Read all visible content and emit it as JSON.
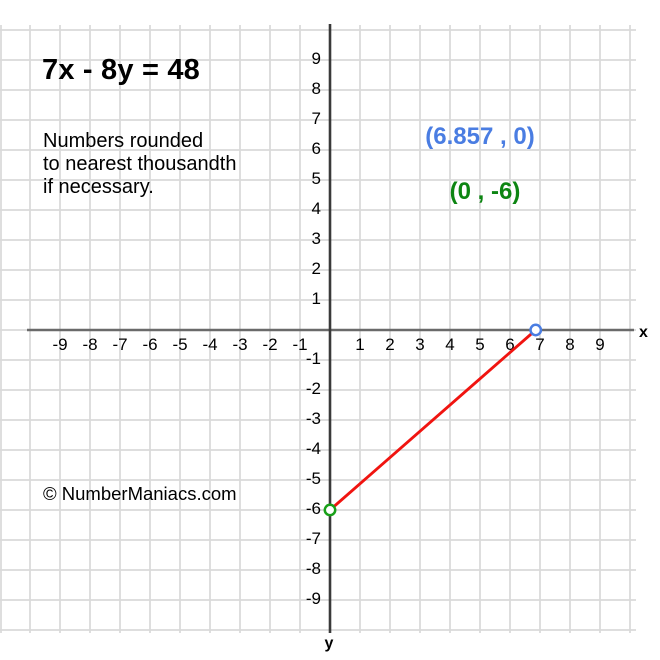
{
  "title": "7x - 8y = 48",
  "note_lines": [
    "Numbers rounded",
    "to nearest thousandth",
    "if necessary."
  ],
  "labels": {
    "x_intercept": {
      "text": "(6.857 , 0)",
      "color": "#4a7de2"
    },
    "y_intercept": {
      "text": "(0 , -6)",
      "color": "#0d8512"
    }
  },
  "watermark": "© NumberManiacs.com",
  "colors": {
    "grid": "#d9d9d9",
    "x_axis": "#6a6a6a",
    "y_axis": "#3a3a3a",
    "tick_text": "#000000",
    "line": "#f01410",
    "x_intercept_point": "#4a7de2",
    "y_intercept_point": "#19a019",
    "point_fill": "#ffffff"
  },
  "chart_data": {
    "type": "line",
    "title": "7x - 8y = 48",
    "equation": "7x - 8y = 48",
    "xlabel": "x",
    "ylabel": "y",
    "xlim": [
      -10.1,
      10.2
    ],
    "ylim": [
      -10.2,
      10.2
    ],
    "grid": true,
    "grid_step": 1,
    "x_ticks": [
      -9,
      -8,
      -7,
      -6,
      -5,
      -4,
      -3,
      -2,
      -1,
      1,
      2,
      3,
      4,
      5,
      6,
      7,
      8,
      9
    ],
    "y_ticks": [
      9,
      8,
      7,
      6,
      5,
      4,
      3,
      2,
      1,
      -1,
      -2,
      -3,
      -4,
      -5,
      -6,
      -7,
      -8,
      -9
    ],
    "series": [
      {
        "name": "7x - 8y = 48",
        "color": "#f01410",
        "points": [
          [
            0,
            -6
          ],
          [
            6.857,
            0
          ]
        ]
      }
    ],
    "intercepts": [
      {
        "name": "x-intercept",
        "x": 6.857,
        "y": 0,
        "label": "(6.857 , 0)",
        "color": "#4a7de2"
      },
      {
        "name": "y-intercept",
        "x": 0,
        "y": -6,
        "label": "(0 , -6)",
        "color": "#19a019"
      }
    ]
  }
}
